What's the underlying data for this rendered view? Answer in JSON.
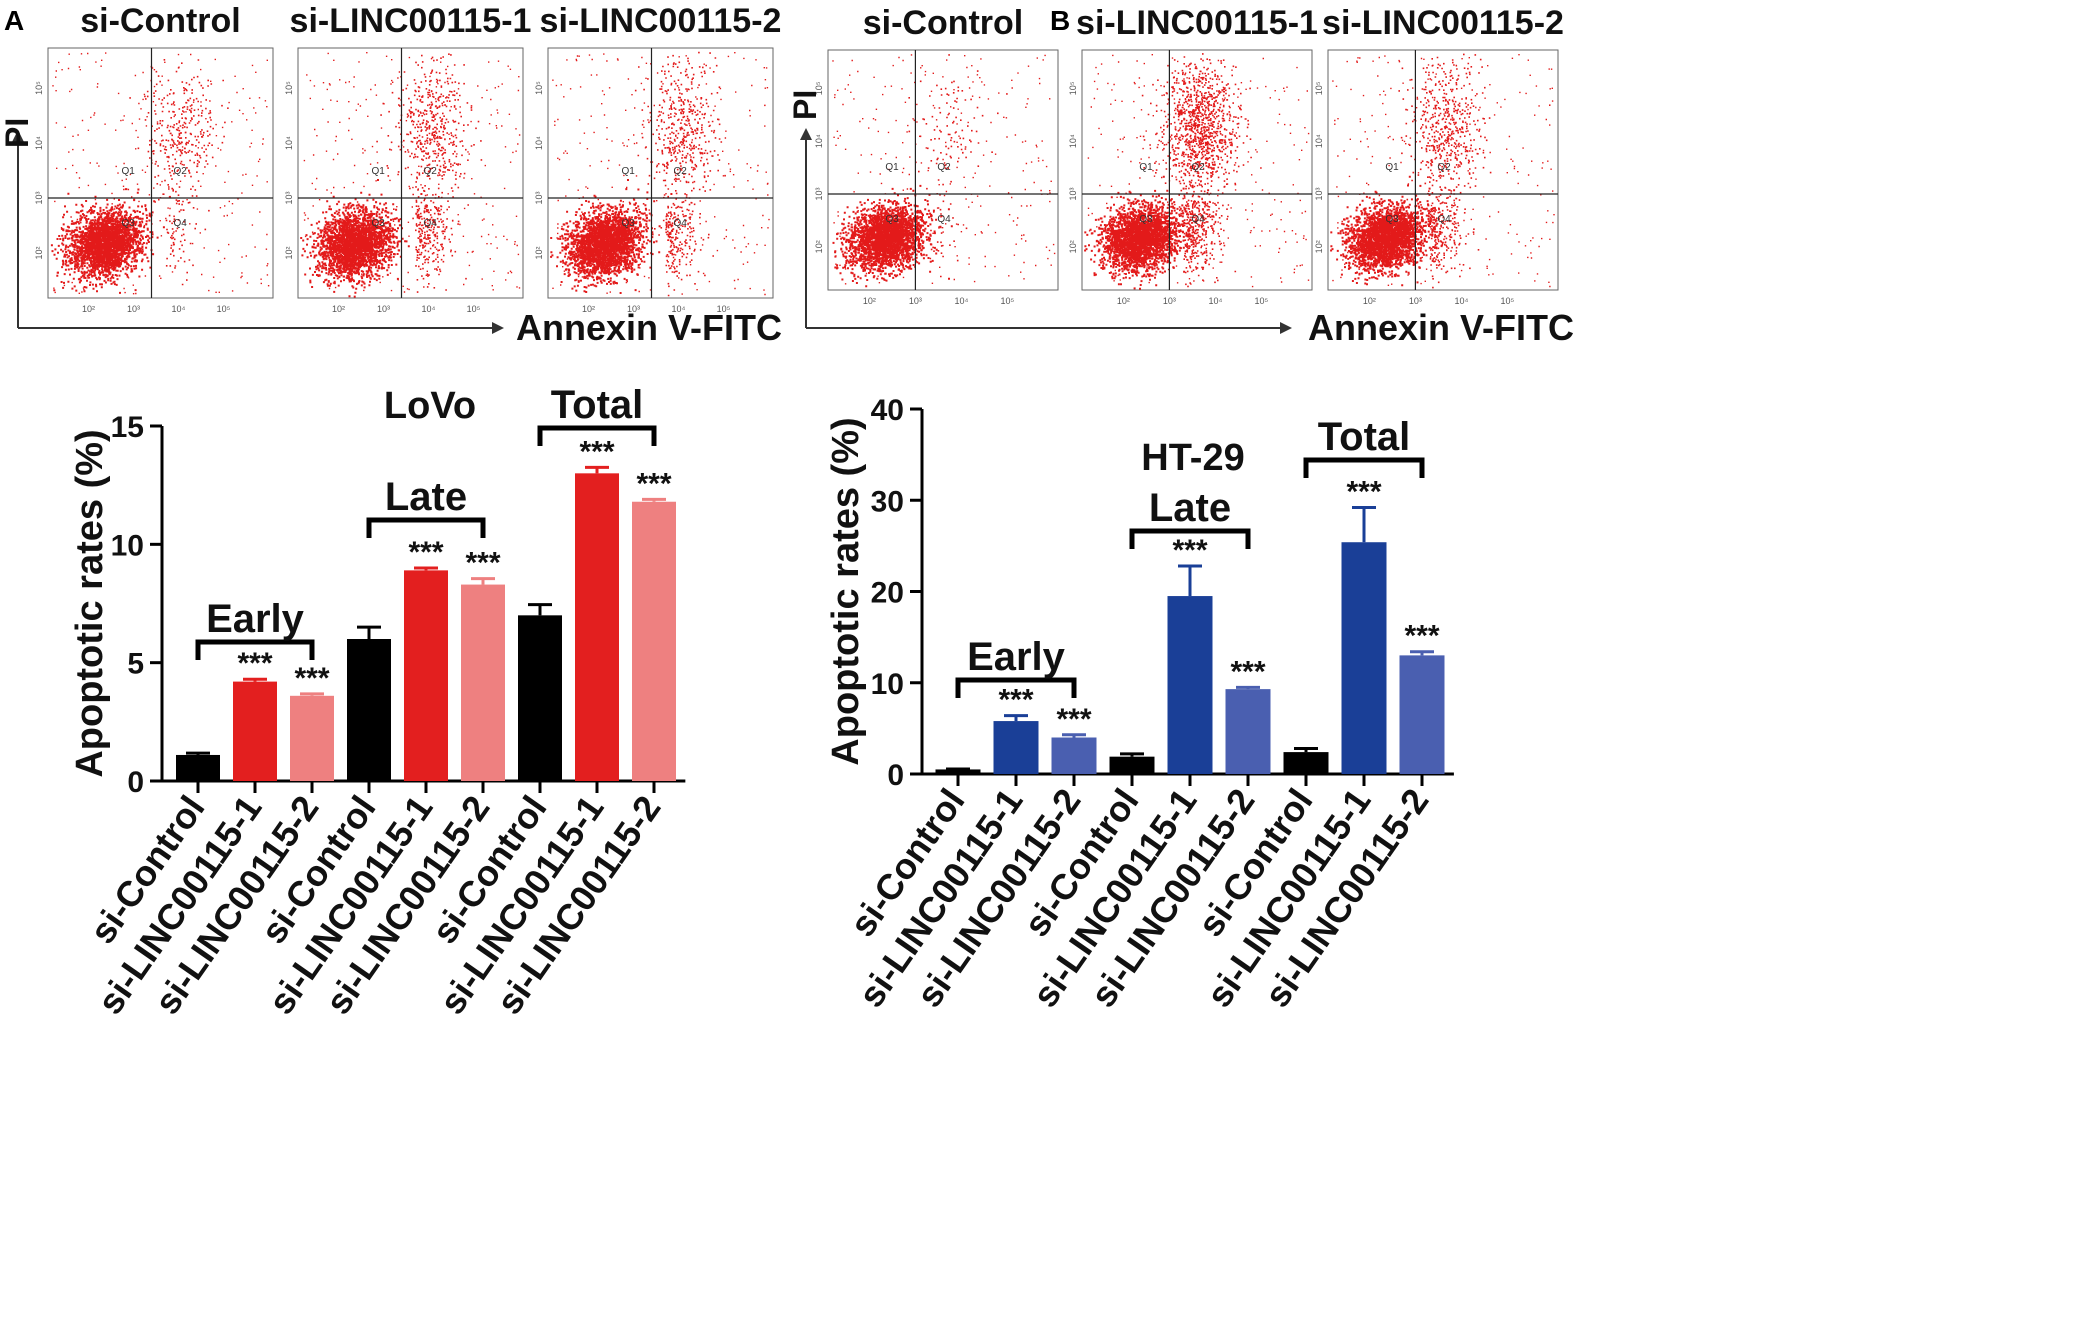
{
  "panel_labels": [
    "A",
    "B"
  ],
  "colors": {
    "black": "#000000",
    "red": "#e31f1f",
    "pink": "#ee8080",
    "darkblue": "#1a3f97",
    "blue": "#4a5fb0",
    "dots": "#e31a1a",
    "axis": "#333333"
  },
  "flow": {
    "xlabel": "Annexin V-FITC",
    "ylabel": "PI",
    "tick_x": [
      "10²",
      "10³",
      "10⁴",
      "10⁵"
    ],
    "tick_y": [
      "10²",
      "10³",
      "10⁴",
      "10⁵"
    ],
    "quadrants": [
      "Q1",
      "Q2",
      "Q3",
      "Q4"
    ],
    "panelA": [
      {
        "title": "si-Control",
        "early_pct": 1.1,
        "late_pct": 6.0
      },
      {
        "title": "si-LINC00115-1",
        "early_pct": 4.2,
        "late_pct": 8.9
      },
      {
        "title": "si-LINC00115-2",
        "early_pct": 3.6,
        "late_pct": 8.3
      }
    ],
    "panelB": [
      {
        "title": "si-Control",
        "early_pct": 0.5,
        "late_pct": 1.9
      },
      {
        "title": "si-LINC00115-1",
        "early_pct": 5.8,
        "late_pct": 19.5
      },
      {
        "title": "si-LINC00115-2",
        "early_pct": 4.0,
        "late_pct": 9.3
      }
    ]
  },
  "chart_data": [
    {
      "type": "bar",
      "title": "LoVo",
      "ylabel": "Apoptotic rates (%)",
      "xlabel": "",
      "ylim": [
        0,
        15
      ],
      "yticks": [
        0,
        5,
        10,
        15
      ],
      "categories": [
        "si-Control",
        "si-LINC00115-1",
        "si-LINC00115-2",
        "si-Control",
        "si-LINC00115-1",
        "si-LINC00115-2",
        "si-Control",
        "si-LINC00115-1",
        "si-LINC00115-2"
      ],
      "groups": [
        "Early",
        "Late",
        "Total"
      ],
      "values": [
        1.1,
        4.2,
        3.6,
        6.0,
        8.9,
        8.3,
        7.0,
        13.0,
        11.8
      ],
      "errors": [
        0.08,
        0.1,
        0.08,
        0.5,
        0.1,
        0.25,
        0.45,
        0.25,
        0.1
      ],
      "significance": [
        "",
        "***",
        "***",
        "",
        "***",
        "***",
        "",
        "***",
        "***"
      ],
      "bar_colors": [
        "black",
        "red",
        "pink",
        "black",
        "red",
        "pink",
        "black",
        "red",
        "pink"
      ]
    },
    {
      "type": "bar",
      "title": "HT-29",
      "ylabel": "Apoptotic rates (%)",
      "xlabel": "",
      "ylim": [
        0,
        40
      ],
      "yticks": [
        0,
        10,
        20,
        30,
        40
      ],
      "categories": [
        "si-Control",
        "si-LINC00115-1",
        "si-LINC00115-2",
        "si-Control",
        "si-LINC00115-1",
        "si-LINC00115-2",
        "si-Control",
        "si-LINC00115-1",
        "si-LINC00115-2"
      ],
      "groups": [
        "Early",
        "Late",
        "Total"
      ],
      "values": [
        0.5,
        5.8,
        4.0,
        1.9,
        19.5,
        9.3,
        2.4,
        25.4,
        13.0
      ],
      "errors": [
        0.05,
        0.6,
        0.3,
        0.3,
        3.3,
        0.2,
        0.4,
        3.8,
        0.4
      ],
      "significance": [
        "",
        "***",
        "***",
        "",
        "***",
        "***",
        "",
        "***",
        "***"
      ],
      "bar_colors": [
        "black",
        "darkblue",
        "blue",
        "black",
        "darkblue",
        "blue",
        "black",
        "darkblue",
        "blue"
      ]
    }
  ]
}
